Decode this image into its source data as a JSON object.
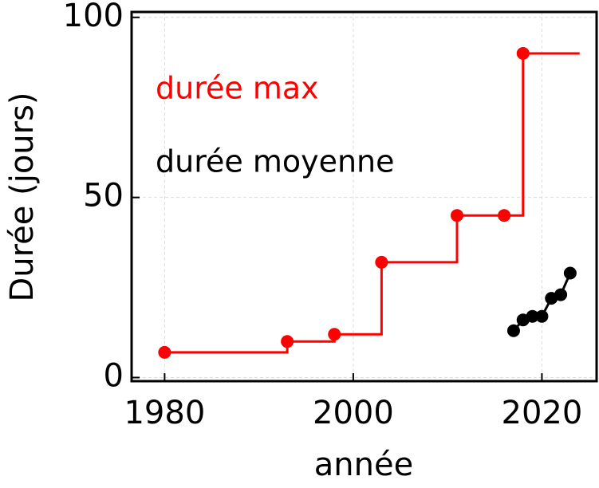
{
  "chart_data": {
    "type": "line",
    "x_label": "année",
    "y_label": "Durée (jours)",
    "xlim": [
      1976.5,
      2025.8
    ],
    "ylim": [
      -1,
      101.5
    ],
    "xticks": [
      1980,
      2000,
      2020
    ],
    "yticks": [
      0,
      50,
      100
    ],
    "grid": true,
    "series": [
      {
        "name": "durée max",
        "color": "#ff0000",
        "step": true,
        "x": [
          1980,
          1993,
          1998,
          2003,
          2011,
          2016,
          2018,
          2024
        ],
        "values": [
          7,
          10,
          12,
          32,
          45,
          45,
          90,
          90
        ]
      },
      {
        "name": "durée moyenne",
        "color": "#000000",
        "step": false,
        "x": [
          2017,
          2018,
          2019,
          2020,
          2021,
          2022,
          2023
        ],
        "values": [
          13,
          16,
          17,
          17,
          22,
          23,
          29
        ]
      }
    ]
  }
}
